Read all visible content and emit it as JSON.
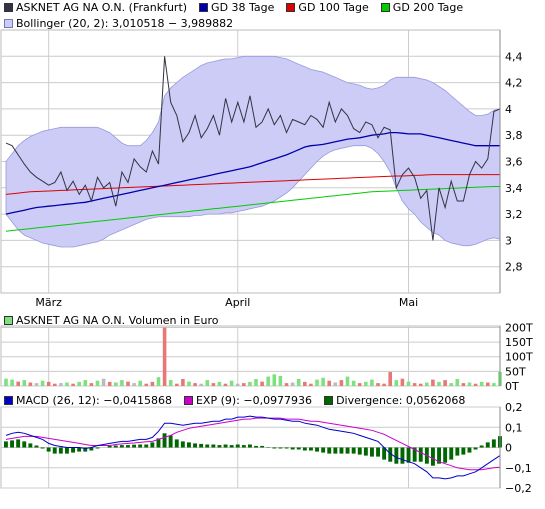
{
  "colors": {
    "band_fill": "#ccccf6",
    "band_edge": "#9999dd",
    "price": "#333344",
    "gd38": "#0000aa",
    "gd100": "#dd0000",
    "gd200": "#00cc00",
    "vol_up": "#7ee07e",
    "vol_down": "#e87878",
    "vol_flat": "#bbbbbb",
    "macd": "#0000cc",
    "exp": "#cc00cc",
    "div": "#006600",
    "grid": "#cccccc"
  },
  "legend_top": [
    {
      "label": "ASKNET AG NA O.N. (Frankfurt)",
      "color": "#333344"
    },
    {
      "label": "GD 38 Tage",
      "color": "#0000aa"
    },
    {
      "label": "GD 100 Tage",
      "color": "#dd0000"
    },
    {
      "label": "GD 200 Tage",
      "color": "#00cc00"
    }
  ],
  "legend_boll": {
    "label": "Bollinger (20, 2): 3,010518 − 3,989882",
    "color": "#ccccf6"
  },
  "legend_vol": {
    "label": "ASKNET AG NA O.N. Volumen in Euro",
    "color": "#7ee07e"
  },
  "legend_macd": [
    {
      "label": "MACD (26, 12): −0,0415868",
      "color": "#0000cc"
    },
    {
      "label": "EXP (9): −0,0977936",
      "color": "#cc00cc"
    },
    {
      "label": "Divergence: 0,0562068",
      "color": "#006600"
    }
  ],
  "chart_data": [
    {
      "type": "line",
      "title": "ASKNET AG NA O.N. (Frankfurt)",
      "x_tick_labels": [
        "März",
        "April",
        "Mai"
      ],
      "x_tick_index": [
        7,
        38,
        66
      ],
      "y_ticks": [
        2.8,
        3,
        3.2,
        3.4,
        3.6,
        3.8,
        4,
        4.2,
        4.4
      ],
      "y_tick_labels": [
        "2,8",
        "3",
        "3,2",
        "3,4",
        "3,6",
        "3,8",
        "4",
        "4,2",
        "4,4"
      ],
      "ylim": [
        2.6,
        4.6
      ],
      "series": [
        {
          "name": "ASKNET AG NA O.N. (Frankfurt)",
          "values": [
            3.74,
            3.72,
            3.65,
            3.58,
            3.52,
            3.48,
            3.45,
            3.42,
            3.44,
            3.52,
            3.38,
            3.45,
            3.35,
            3.42,
            3.3,
            3.48,
            3.4,
            3.44,
            3.26,
            3.52,
            3.44,
            3.62,
            3.56,
            3.52,
            3.68,
            3.58,
            4.4,
            4.05,
            3.95,
            3.75,
            3.82,
            3.95,
            3.78,
            3.85,
            3.95,
            3.8,
            4.08,
            3.9,
            4.05,
            3.9,
            4.1,
            3.86,
            3.9,
            4.0,
            3.88,
            3.95,
            3.82,
            3.92,
            3.9,
            3.88,
            3.95,
            3.92,
            3.86,
            4.05,
            3.9,
            4.0,
            3.95,
            3.85,
            3.82,
            3.9,
            3.88,
            3.78,
            3.86,
            3.84,
            3.4,
            3.5,
            3.55,
            3.48,
            3.32,
            3.38,
            3.0,
            3.4,
            3.25,
            3.45,
            3.3,
            3.3,
            3.5,
            3.6,
            3.55,
            3.62,
            3.98,
            4.0
          ]
        },
        {
          "name": "GD 38 Tage",
          "values": [
            3.2,
            3.21,
            3.22,
            3.23,
            3.24,
            3.25,
            3.255,
            3.26,
            3.265,
            3.27,
            3.275,
            3.28,
            3.285,
            3.29,
            3.3,
            3.31,
            3.32,
            3.33,
            3.34,
            3.35,
            3.36,
            3.37,
            3.38,
            3.39,
            3.4,
            3.41,
            3.42,
            3.43,
            3.44,
            3.45,
            3.46,
            3.47,
            3.48,
            3.49,
            3.5,
            3.51,
            3.52,
            3.53,
            3.54,
            3.55,
            3.56,
            3.575,
            3.59,
            3.605,
            3.62,
            3.635,
            3.65,
            3.67,
            3.69,
            3.71,
            3.72,
            3.725,
            3.73,
            3.74,
            3.75,
            3.76,
            3.77,
            3.775,
            3.78,
            3.79,
            3.8,
            3.805,
            3.81,
            3.82,
            3.82,
            3.815,
            3.81,
            3.81,
            3.81,
            3.8,
            3.79,
            3.78,
            3.77,
            3.76,
            3.75,
            3.74,
            3.73,
            3.72,
            3.72,
            3.72,
            3.72,
            3.72
          ]
        },
        {
          "name": "GD 100 Tage",
          "values": [
            3.35,
            3.355,
            3.36,
            3.365,
            3.37,
            3.372,
            3.374,
            3.376,
            3.378,
            3.38,
            3.382,
            3.384,
            3.386,
            3.388,
            3.39,
            3.392,
            3.394,
            3.396,
            3.398,
            3.4,
            3.402,
            3.404,
            3.406,
            3.408,
            3.41,
            3.412,
            3.414,
            3.416,
            3.418,
            3.42,
            3.422,
            3.424,
            3.426,
            3.428,
            3.43,
            3.432,
            3.434,
            3.436,
            3.438,
            3.44,
            3.442,
            3.444,
            3.446,
            3.448,
            3.45,
            3.452,
            3.454,
            3.456,
            3.458,
            3.46,
            3.462,
            3.464,
            3.466,
            3.468,
            3.47,
            3.472,
            3.474,
            3.476,
            3.478,
            3.48,
            3.482,
            3.484,
            3.486,
            3.488,
            3.49,
            3.49,
            3.492,
            3.494,
            3.496,
            3.498,
            3.5,
            3.5,
            3.5,
            3.5,
            3.5,
            3.5,
            3.5,
            3.5,
            3.5,
            3.5,
            3.5,
            3.5
          ]
        },
        {
          "name": "GD 200 Tage",
          "values": [
            3.07,
            3.075,
            3.08,
            3.085,
            3.09,
            3.095,
            3.1,
            3.105,
            3.11,
            3.115,
            3.12,
            3.125,
            3.13,
            3.135,
            3.14,
            3.145,
            3.15,
            3.155,
            3.16,
            3.165,
            3.17,
            3.175,
            3.18,
            3.185,
            3.19,
            3.195,
            3.2,
            3.205,
            3.21,
            3.215,
            3.22,
            3.225,
            3.23,
            3.235,
            3.24,
            3.245,
            3.25,
            3.255,
            3.26,
            3.265,
            3.27,
            3.275,
            3.28,
            3.285,
            3.29,
            3.295,
            3.3,
            3.305,
            3.31,
            3.315,
            3.32,
            3.325,
            3.33,
            3.335,
            3.34,
            3.345,
            3.35,
            3.355,
            3.36,
            3.365,
            3.37,
            3.372,
            3.374,
            3.376,
            3.378,
            3.38,
            3.382,
            3.384,
            3.386,
            3.388,
            3.39,
            3.392,
            3.394,
            3.396,
            3.398,
            3.4,
            3.402,
            3.404,
            3.406,
            3.408,
            3.41,
            3.41
          ]
        },
        {
          "name": "Bollinger (20, 2)",
          "upper": [
            3.6,
            3.66,
            3.72,
            3.76,
            3.79,
            3.81,
            3.83,
            3.84,
            3.85,
            3.86,
            3.86,
            3.86,
            3.86,
            3.86,
            3.86,
            3.86,
            3.84,
            3.82,
            3.78,
            3.74,
            3.72,
            3.72,
            3.72,
            3.76,
            3.82,
            3.9,
            4.1,
            4.16,
            4.2,
            4.24,
            4.27,
            4.3,
            4.33,
            4.35,
            4.36,
            4.37,
            4.38,
            4.38,
            4.39,
            4.4,
            4.4,
            4.4,
            4.4,
            4.4,
            4.4,
            4.39,
            4.38,
            4.36,
            4.34,
            4.32,
            4.3,
            4.29,
            4.28,
            4.26,
            4.24,
            4.22,
            4.2,
            4.19,
            4.18,
            4.16,
            4.15,
            4.16,
            4.18,
            4.22,
            4.24,
            4.24,
            4.24,
            4.24,
            4.23,
            4.22,
            4.2,
            4.17,
            4.14,
            4.1,
            4.06,
            4.02,
            3.98,
            3.95,
            3.95,
            3.96,
            3.99,
            4.0
          ],
          "lower": [
            3.2,
            3.14,
            3.08,
            3.04,
            3.02,
            3.0,
            2.98,
            2.97,
            2.96,
            2.95,
            2.95,
            2.95,
            2.96,
            2.97,
            2.98,
            2.99,
            3.01,
            3.04,
            3.06,
            3.08,
            3.1,
            3.12,
            3.14,
            3.16,
            3.17,
            3.18,
            3.18,
            3.18,
            3.18,
            3.18,
            3.18,
            3.19,
            3.19,
            3.2,
            3.2,
            3.2,
            3.21,
            3.21,
            3.22,
            3.23,
            3.24,
            3.25,
            3.26,
            3.28,
            3.3,
            3.33,
            3.36,
            3.4,
            3.45,
            3.5,
            3.55,
            3.6,
            3.64,
            3.67,
            3.69,
            3.7,
            3.71,
            3.72,
            3.72,
            3.72,
            3.7,
            3.66,
            3.6,
            3.52,
            3.4,
            3.3,
            3.24,
            3.2,
            3.14,
            3.1,
            3.06,
            3.04,
            3.0,
            2.98,
            2.97,
            2.96,
            2.96,
            2.97,
            2.99,
            3.01,
            3.02,
            3.01
          ]
        }
      ]
    },
    {
      "type": "bar",
      "title": "ASKNET AG NA O.N. Volumen in Euro",
      "y_ticks": [
        0,
        50,
        100,
        150,
        200
      ],
      "y_tick_labels": [
        "0T",
        "50T",
        "100T",
        "150T",
        "200T"
      ],
      "ylim": [
        0,
        205
      ],
      "unit": "T",
      "values": [
        25,
        22,
        15,
        20,
        12,
        10,
        18,
        14,
        8,
        10,
        12,
        8,
        14,
        20,
        10,
        18,
        25,
        14,
        12,
        20,
        15,
        10,
        18,
        8,
        14,
        30,
        200,
        20,
        8,
        24,
        15,
        10,
        8,
        20,
        10,
        14,
        8,
        18,
        8,
        10,
        14,
        24,
        15,
        32,
        40,
        34,
        10,
        12,
        24,
        14,
        8,
        22,
        28,
        18,
        12,
        20,
        32,
        18,
        10,
        14,
        22,
        10,
        8,
        48,
        20,
        25,
        15,
        10,
        8,
        12,
        22,
        14,
        20,
        10,
        24,
        10,
        12,
        8,
        14,
        12,
        10,
        48
      ],
      "colors": [
        "up",
        "up",
        "down",
        "up",
        "down",
        "flat",
        "up",
        "down",
        "down",
        "flat",
        "up",
        "down",
        "up",
        "up",
        "down",
        "up",
        "flat",
        "down",
        "up",
        "up",
        "down",
        "flat",
        "up",
        "down",
        "down",
        "up",
        "down",
        "up",
        "down",
        "down",
        "up",
        "down",
        "flat",
        "up",
        "down",
        "up",
        "down",
        "up",
        "flat",
        "down",
        "up",
        "up",
        "down",
        "up",
        "up",
        "up",
        "down",
        "flat",
        "up",
        "down",
        "down",
        "up",
        "up",
        "down",
        "flat",
        "down",
        "up",
        "up",
        "down",
        "up",
        "up",
        "down",
        "down",
        "down",
        "up",
        "down",
        "up",
        "down",
        "down",
        "up",
        "down",
        "up",
        "down",
        "up",
        "up",
        "down",
        "up",
        "down",
        "up",
        "down",
        "up",
        "up"
      ]
    },
    {
      "type": "line",
      "title": "MACD (26, 12)",
      "y_ticks": [
        -0.2,
        -0.1,
        0,
        0.1,
        0.2
      ],
      "y_tick_labels": [
        "−0,2",
        "−0,1",
        "0",
        "0,1",
        "0,2"
      ],
      "ylim": [
        -0.2,
        0.2
      ],
      "series": [
        {
          "name": "MACD (26, 12)",
          "values": [
            0.06,
            0.07,
            0.075,
            0.07,
            0.06,
            0.05,
            0.04,
            0.02,
            0.01,
            0.005,
            0.0,
            0.0,
            0.0,
            -0.005,
            0.0,
            0.01,
            0.015,
            0.02,
            0.025,
            0.03,
            0.03,
            0.035,
            0.04,
            0.04,
            0.05,
            0.08,
            0.12,
            0.12,
            0.115,
            0.11,
            0.115,
            0.12,
            0.12,
            0.125,
            0.13,
            0.13,
            0.14,
            0.14,
            0.15,
            0.15,
            0.155,
            0.15,
            0.15,
            0.145,
            0.14,
            0.14,
            0.135,
            0.13,
            0.13,
            0.12,
            0.115,
            0.11,
            0.1,
            0.09,
            0.085,
            0.08,
            0.075,
            0.07,
            0.06,
            0.05,
            0.04,
            0.03,
            0.0,
            -0.03,
            -0.05,
            -0.06,
            -0.07,
            -0.08,
            -0.1,
            -0.12,
            -0.15,
            -0.15,
            -0.155,
            -0.15,
            -0.14,
            -0.14,
            -0.13,
            -0.12,
            -0.1,
            -0.08,
            -0.06,
            -0.04
          ]
        },
        {
          "name": "EXP (9)",
          "values": [
            0.04,
            0.045,
            0.05,
            0.055,
            0.055,
            0.055,
            0.05,
            0.045,
            0.04,
            0.035,
            0.03,
            0.025,
            0.02,
            0.015,
            0.01,
            0.01,
            0.01,
            0.01,
            0.015,
            0.018,
            0.02,
            0.022,
            0.025,
            0.028,
            0.03,
            0.04,
            0.05,
            0.06,
            0.075,
            0.085,
            0.095,
            0.1,
            0.105,
            0.11,
            0.115,
            0.12,
            0.125,
            0.13,
            0.135,
            0.14,
            0.14,
            0.145,
            0.145,
            0.145,
            0.145,
            0.145,
            0.14,
            0.14,
            0.14,
            0.135,
            0.13,
            0.13,
            0.125,
            0.12,
            0.115,
            0.11,
            0.105,
            0.1,
            0.095,
            0.09,
            0.085,
            0.075,
            0.065,
            0.05,
            0.035,
            0.02,
            0.005,
            -0.01,
            -0.025,
            -0.04,
            -0.055,
            -0.07,
            -0.08,
            -0.09,
            -0.1,
            -0.105,
            -0.11,
            -0.11,
            -0.11,
            -0.105,
            -0.1,
            -0.098
          ]
        },
        {
          "name": "Divergence",
          "values": [
            0.03,
            0.035,
            0.04,
            0.03,
            0.02,
            0.01,
            -0.005,
            -0.02,
            -0.03,
            -0.03,
            -0.03,
            -0.025,
            -0.02,
            -0.02,
            -0.015,
            -0.005,
            0.0,
            0.008,
            0.01,
            0.012,
            0.012,
            0.014,
            0.015,
            0.015,
            0.025,
            0.045,
            0.07,
            0.06,
            0.04,
            0.03,
            0.025,
            0.02,
            0.018,
            0.015,
            0.015,
            0.012,
            0.015,
            0.012,
            0.015,
            0.012,
            0.015,
            0.008,
            0.008,
            0.002,
            -0.005,
            -0.005,
            -0.005,
            -0.01,
            -0.01,
            -0.015,
            -0.015,
            -0.02,
            -0.025,
            -0.03,
            -0.03,
            -0.03,
            -0.03,
            -0.03,
            -0.035,
            -0.04,
            -0.045,
            -0.045,
            -0.06,
            -0.07,
            -0.08,
            -0.08,
            -0.075,
            -0.07,
            -0.07,
            -0.08,
            -0.09,
            -0.08,
            -0.075,
            -0.06,
            -0.04,
            -0.035,
            -0.025,
            -0.01,
            0.01,
            0.025,
            0.04,
            0.056
          ]
        }
      ]
    }
  ]
}
